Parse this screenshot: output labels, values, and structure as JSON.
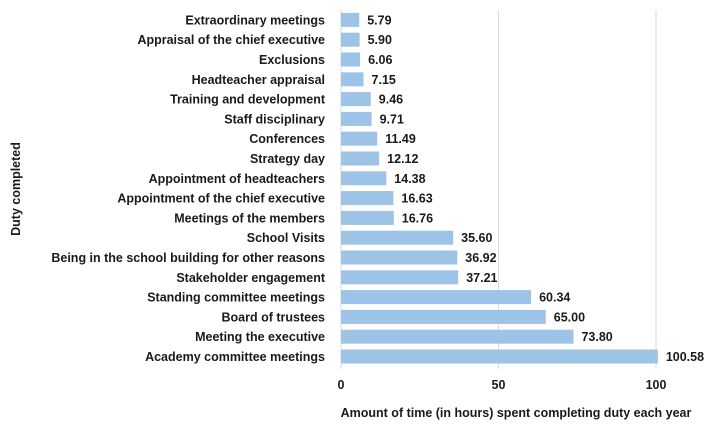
{
  "chart_data": {
    "type": "bar",
    "orientation": "horizontal",
    "categories": [
      "Extraordinary meetings",
      "Appraisal of the chief executive",
      "Exclusions",
      "Headteacher appraisal",
      "Training and development",
      "Staff disciplinary",
      "Conferences",
      "Strategy day",
      "Appointment of headteachers",
      "Appointment of the chief executive",
      "Meetings of the members",
      "School Visits",
      "Being in the school building for other reasons",
      "Stakeholder engagement",
      "Standing committee meetings",
      "Board of trustees",
      "Meeting the executive",
      "Academy committee meetings"
    ],
    "values": [
      5.79,
      5.9,
      6.06,
      7.15,
      9.46,
      9.71,
      11.49,
      12.12,
      14.38,
      16.63,
      16.76,
      35.6,
      36.92,
      37.21,
      60.34,
      65.0,
      73.8,
      100.58
    ],
    "value_labels": [
      "5.79",
      "5.90",
      "6.06",
      "7.15",
      "9.46",
      "9.71",
      "11.49",
      "12.12",
      "14.38",
      "16.63",
      "16.76",
      "35.60",
      "36.92",
      "37.21",
      "60.34",
      "65.00",
      "73.80",
      "100.58"
    ],
    "xlabel": "Amount of time (in hours) spent completing duty each year",
    "ylabel": "Duty completed",
    "xlim": [
      0,
      100
    ],
    "xticks": [
      0,
      50,
      100
    ],
    "xtick_labels": [
      "0",
      "50",
      "100"
    ],
    "grid": "vertical",
    "bar_color": "#9dc3e6",
    "gridline_color": "#d9d9d9"
  }
}
